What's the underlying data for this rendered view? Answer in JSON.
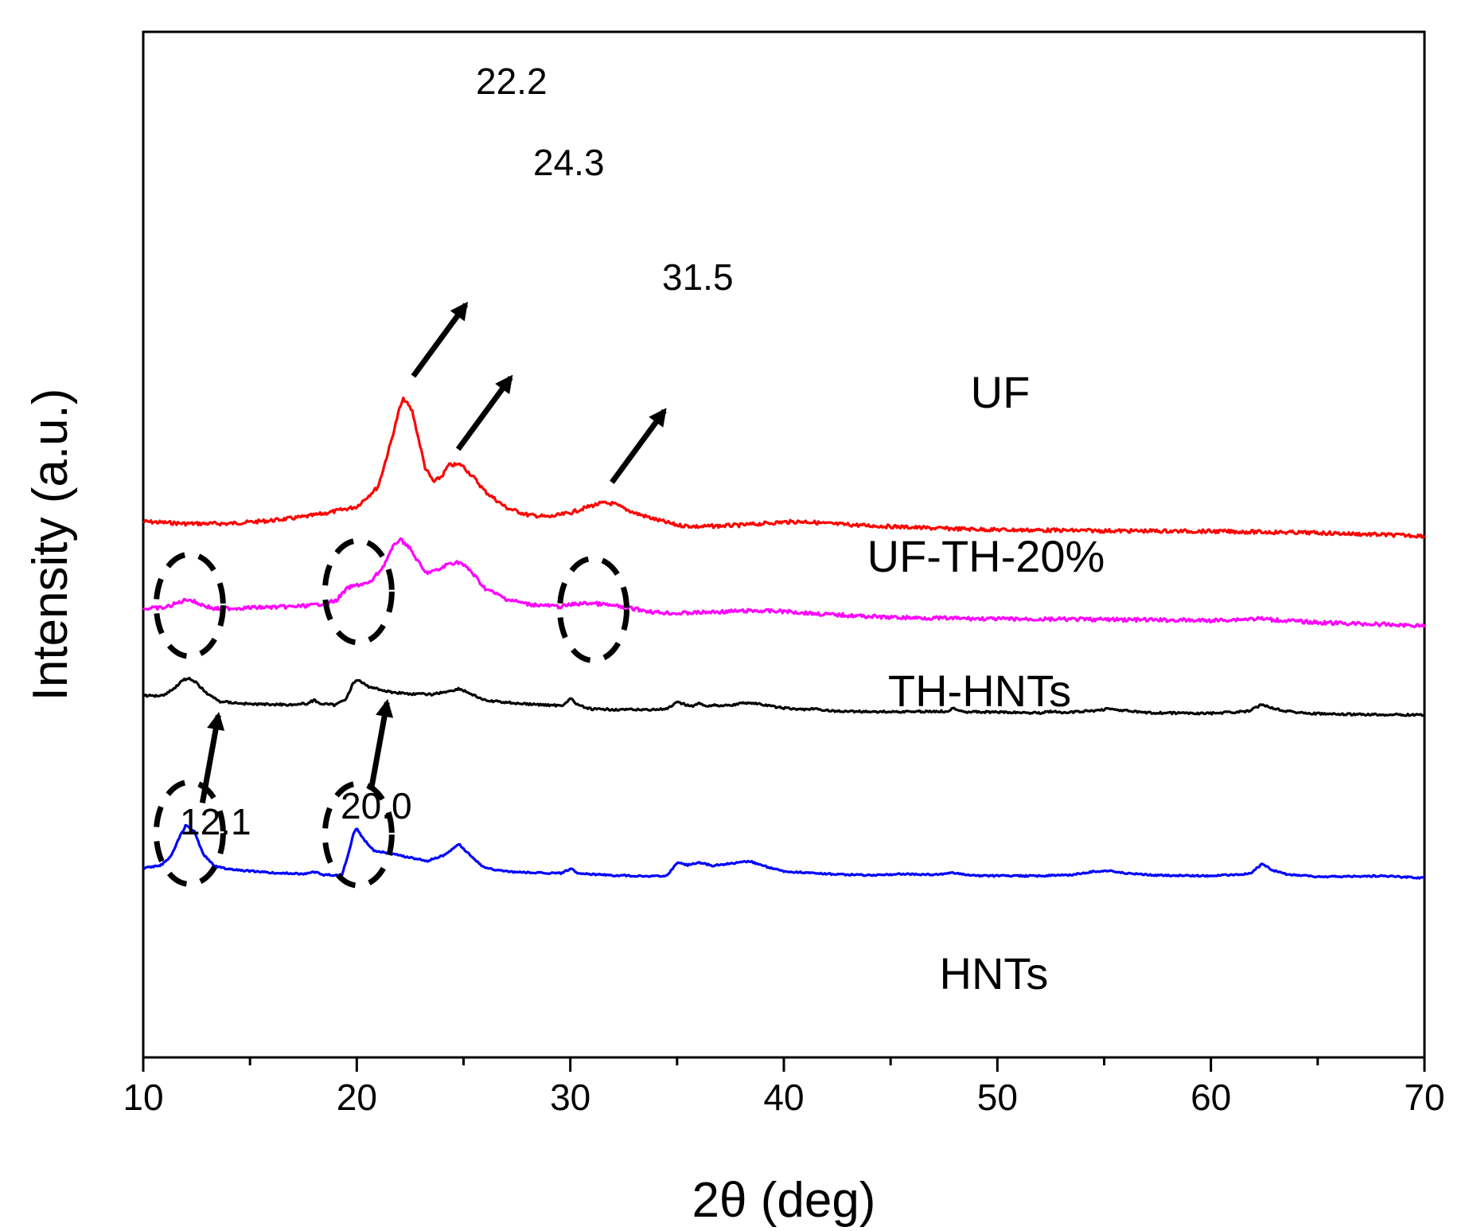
{
  "chart_data": {
    "type": "line",
    "title": "",
    "xlabel": "2θ (deg)",
    "ylabel": "Intensity (a.u.)",
    "xlim": [
      10,
      70
    ],
    "xticks": [
      10,
      20,
      30,
      40,
      50,
      60,
      70
    ],
    "yticks": "none",
    "grid": false,
    "legend": "labels placed next to each curve",
    "colors": {
      "UF": "#ff0000",
      "UF-TH-20%": "#ff00ff",
      "TH-HNTs": "#000000",
      "HNTs": "#0000ff"
    },
    "series": [
      {
        "name": "UF",
        "label": "UF",
        "color": "#ff0000",
        "baseline": 95.5,
        "noise": 0.35,
        "points": [
          [
            10,
            95.5
          ],
          [
            12,
            95.9
          ],
          [
            14,
            95.9
          ],
          [
            16,
            95.3
          ],
          [
            17.5,
            94.6
          ],
          [
            18.5,
            93.9
          ],
          [
            20,
            92.6
          ],
          [
            21,
            88.7
          ],
          [
            21.6,
            80.0
          ],
          [
            22.0,
            73.5
          ],
          [
            22.2,
            71.5
          ],
          [
            22.6,
            74.0
          ],
          [
            23.2,
            85.0
          ],
          [
            23.6,
            87.8
          ],
          [
            24.0,
            86.6
          ],
          [
            24.3,
            84.5
          ],
          [
            24.9,
            84.4
          ],
          [
            25.5,
            87.0
          ],
          [
            26,
            89.6
          ],
          [
            27,
            92.8
          ],
          [
            28,
            94.2
          ],
          [
            29,
            94.6
          ],
          [
            30,
            93.8
          ],
          [
            31,
            92.4
          ],
          [
            31.5,
            91.9
          ],
          [
            32,
            92.0
          ],
          [
            33,
            93.8
          ],
          [
            34,
            95.1
          ],
          [
            35,
            96.2
          ],
          [
            36,
            96.5
          ],
          [
            38,
            96.2
          ],
          [
            40,
            95.6
          ],
          [
            41,
            95.5
          ],
          [
            42,
            95.9
          ],
          [
            44,
            96.3
          ],
          [
            47,
            96.8
          ],
          [
            50,
            97.1
          ],
          [
            55,
            97.3
          ],
          [
            60,
            97.4
          ],
          [
            65,
            97.7
          ],
          [
            70,
            98.3
          ]
        ]
      },
      {
        "name": "UF-TH-20%",
        "label": "UF-TH-20%",
        "color": "#ff00ff",
        "baseline": 112.5,
        "noise": 0.35,
        "points": [
          [
            10,
            112.5
          ],
          [
            11,
            112.3
          ],
          [
            11.6,
            111.4
          ],
          [
            12.1,
            110.6
          ],
          [
            12.6,
            111.5
          ],
          [
            13.3,
            112.5
          ],
          [
            15,
            112.3
          ],
          [
            17,
            112.1
          ],
          [
            18,
            111.8
          ],
          [
            19,
            111.0
          ],
          [
            19.6,
            108.4
          ],
          [
            20.1,
            107.8
          ],
          [
            20.6,
            107.5
          ],
          [
            21.2,
            104.5
          ],
          [
            21.7,
            100.5
          ],
          [
            22.0,
            98.9
          ],
          [
            22.4,
            100.2
          ],
          [
            23.2,
            105.5
          ],
          [
            23.8,
            105.0
          ],
          [
            24.3,
            103.7
          ],
          [
            24.8,
            103.4
          ],
          [
            25.3,
            105.0
          ],
          [
            26,
            108.5
          ],
          [
            27,
            110.6
          ],
          [
            28,
            111.6
          ],
          [
            29.5,
            112.1
          ],
          [
            30.2,
            111.6
          ],
          [
            31,
            111.4
          ],
          [
            31.8,
            111.8
          ],
          [
            32.5,
            112.2
          ],
          [
            34,
            113.2
          ],
          [
            35,
            113.4
          ],
          [
            37,
            113.1
          ],
          [
            38.5,
            112.9
          ],
          [
            40,
            113.0
          ],
          [
            42,
            113.6
          ],
          [
            45,
            114.2
          ],
          [
            50,
            114.5
          ],
          [
            55,
            114.6
          ],
          [
            60,
            114.8
          ],
          [
            62.3,
            114.4
          ],
          [
            62.7,
            114.6
          ],
          [
            65,
            115.2
          ],
          [
            70,
            115.8
          ]
        ]
      },
      {
        "name": "TH-HNTs",
        "label": "TH-HNTs",
        "color": "#000000",
        "baseline": 129.5,
        "noise": 0.2,
        "points": [
          [
            10,
            129.5
          ],
          [
            10.9,
            129.4
          ],
          [
            11.4,
            128.2
          ],
          [
            11.8,
            126.6
          ],
          [
            12.1,
            126.0
          ],
          [
            12.5,
            127.0
          ],
          [
            13,
            129.1
          ],
          [
            13.6,
            130.6
          ],
          [
            15,
            131.1
          ],
          [
            17,
            131.2
          ],
          [
            17.7,
            131.0
          ],
          [
            18.0,
            130.3
          ],
          [
            18.3,
            131.0
          ],
          [
            19.0,
            131.3
          ],
          [
            19.5,
            130.0
          ],
          [
            19.8,
            127.3
          ],
          [
            20.0,
            126.3
          ],
          [
            20.5,
            127.6
          ],
          [
            21.5,
            128.7
          ],
          [
            22.5,
            129.1
          ],
          [
            23.5,
            129.2
          ],
          [
            24.3,
            128.6
          ],
          [
            24.8,
            128.1
          ],
          [
            25.3,
            129.0
          ],
          [
            26,
            130.4
          ],
          [
            28,
            131.1
          ],
          [
            29.6,
            131.4
          ],
          [
            30.0,
            130.0
          ],
          [
            30.4,
            131.4
          ],
          [
            31,
            132.1
          ],
          [
            33,
            132.2
          ],
          [
            34.5,
            132.1
          ],
          [
            35.0,
            130.8
          ],
          [
            35.4,
            131.2
          ],
          [
            35.7,
            131.5
          ],
          [
            36.0,
            131.0
          ],
          [
            36.4,
            131.4
          ],
          [
            37.5,
            131.3
          ],
          [
            38.3,
            130.8
          ],
          [
            38.7,
            131.0
          ],
          [
            39.5,
            131.6
          ],
          [
            40.5,
            132.1
          ],
          [
            41.5,
            132.1
          ],
          [
            42.5,
            132.5
          ],
          [
            45,
            132.6
          ],
          [
            47.6,
            132.5
          ],
          [
            48.0,
            131.9
          ],
          [
            48.5,
            132.6
          ],
          [
            52,
            132.8
          ],
          [
            52.5,
            132.5
          ],
          [
            53,
            132.8
          ],
          [
            54.5,
            132.4
          ],
          [
            55.2,
            132.0
          ],
          [
            56,
            132.4
          ],
          [
            57,
            132.8
          ],
          [
            60,
            132.9
          ],
          [
            61.8,
            132.5
          ],
          [
            62.4,
            131.1
          ],
          [
            62.9,
            131.9
          ],
          [
            63.5,
            132.4
          ],
          [
            64.5,
            132.9
          ],
          [
            66,
            133.1
          ],
          [
            70,
            133.2
          ]
        ]
      },
      {
        "name": "HNTs",
        "label": "HNTs",
        "color": "#0000ff",
        "baseline": 163.1,
        "noise": 0.15,
        "points": [
          [
            10,
            163.1
          ],
          [
            10.8,
            162.6
          ],
          [
            11.3,
            160.8
          ],
          [
            11.7,
            157.0
          ],
          [
            12.0,
            154.7
          ],
          [
            12.4,
            156.0
          ],
          [
            12.8,
            160.3
          ],
          [
            13.3,
            162.6
          ],
          [
            14,
            163.3
          ],
          [
            16,
            164.0
          ],
          [
            17.6,
            164.2
          ],
          [
            18.0,
            163.8
          ],
          [
            18.4,
            164.4
          ],
          [
            19.3,
            164.4
          ],
          [
            19.6,
            160.5
          ],
          [
            19.85,
            156.3
          ],
          [
            20.0,
            155.3
          ],
          [
            20.3,
            157.4
          ],
          [
            20.8,
            159.6
          ],
          [
            22,
            160.6
          ],
          [
            23.3,
            161.7
          ],
          [
            24,
            160.7
          ],
          [
            24.8,
            158.5
          ],
          [
            25.3,
            160.5
          ],
          [
            25.9,
            162.8
          ],
          [
            26.5,
            163.5
          ],
          [
            27.5,
            163.9
          ],
          [
            29.6,
            164.1
          ],
          [
            30.0,
            163.2
          ],
          [
            30.4,
            164.1
          ],
          [
            32,
            164.5
          ],
          [
            34.5,
            164.7
          ],
          [
            35.0,
            162.0
          ],
          [
            35.5,
            162.5
          ],
          [
            36.0,
            162.0
          ],
          [
            36.7,
            162.6
          ],
          [
            37.5,
            162.2
          ],
          [
            38.4,
            161.7
          ],
          [
            39.0,
            162.6
          ],
          [
            40,
            163.7
          ],
          [
            42,
            164.2
          ],
          [
            44,
            164.5
          ],
          [
            45.5,
            164.2
          ],
          [
            47,
            164.4
          ],
          [
            48,
            164.0
          ],
          [
            49,
            164.6
          ],
          [
            52,
            164.6
          ],
          [
            53.5,
            164.4
          ],
          [
            54.6,
            163.7
          ],
          [
            55.3,
            163.6
          ],
          [
            56,
            164.1
          ],
          [
            57.5,
            164.5
          ],
          [
            60,
            164.6
          ],
          [
            61.8,
            164.2
          ],
          [
            62.4,
            162.3
          ],
          [
            62.9,
            163.5
          ],
          [
            63.6,
            164.3
          ],
          [
            65,
            164.8
          ],
          [
            68,
            164.6
          ],
          [
            70,
            165.0
          ]
        ]
      }
    ],
    "annotations": [
      {
        "label": "22.2",
        "series": "UF",
        "x": 22.2
      },
      {
        "label": "24.3",
        "series": "UF",
        "x": 24.3
      },
      {
        "label": "31.5",
        "series": "UF",
        "x": 31.5
      },
      {
        "label": "12.1",
        "series": "HNTs",
        "x": 12.1
      },
      {
        "label": "20.0",
        "series": "HNTs",
        "x": 20.0
      }
    ],
    "highlight_ellipses": [
      {
        "series": "UF-TH-20%",
        "x": 12.1
      },
      {
        "series": "UF-TH-20%",
        "x": 20.0
      },
      {
        "series": "UF-TH-20%",
        "x": 31.0
      },
      {
        "series": "HNTs",
        "x": 12.1
      },
      {
        "series": "HNTs",
        "x": 20.0
      }
    ]
  }
}
